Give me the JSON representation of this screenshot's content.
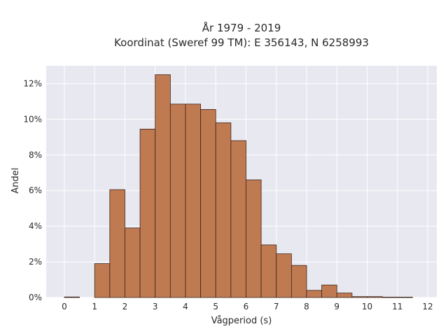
{
  "chart_data": {
    "type": "bar",
    "title": "År 1979 - 2019",
    "subtitle": "Koordinat (Sweref 99 TM): E 356143, N 6258993",
    "xlabel": "Vågperiod (s)",
    "ylabel": "Andel",
    "bin_width": 0.5,
    "bin_starts": [
      0,
      0.5,
      1,
      1.5,
      2,
      2.5,
      3,
      3.5,
      4,
      4.5,
      5,
      5.5,
      6,
      6.5,
      7,
      7.5,
      8,
      8.5,
      9,
      9.5,
      10,
      10.5,
      11,
      11.5
    ],
    "values": [
      0.03,
      0,
      1.9,
      6.05,
      3.9,
      9.45,
      12.5,
      10.85,
      10.85,
      10.55,
      9.8,
      8.8,
      6.6,
      2.95,
      2.45,
      1.8,
      0.4,
      0.7,
      0.25,
      0.05,
      0.05,
      0.02,
      0.02,
      0
    ],
    "xlim": [
      -0.6,
      12.3
    ],
    "ylim": [
      0,
      13.0
    ],
    "x_ticks": [
      0,
      1,
      2,
      3,
      4,
      5,
      6,
      7,
      8,
      9,
      10,
      11,
      12
    ],
    "y_ticks": [
      0,
      2,
      4,
      6,
      8,
      10,
      12
    ],
    "y_tick_labels": [
      "0%",
      "2%",
      "4%",
      "6%",
      "8%",
      "10%",
      "12%"
    ],
    "grid": true,
    "colors": {
      "bar_fill": "#c07a52",
      "bar_stroke": "#3a2418",
      "plot_bg": "#e8e8f0",
      "grid": "#ffffff"
    }
  }
}
